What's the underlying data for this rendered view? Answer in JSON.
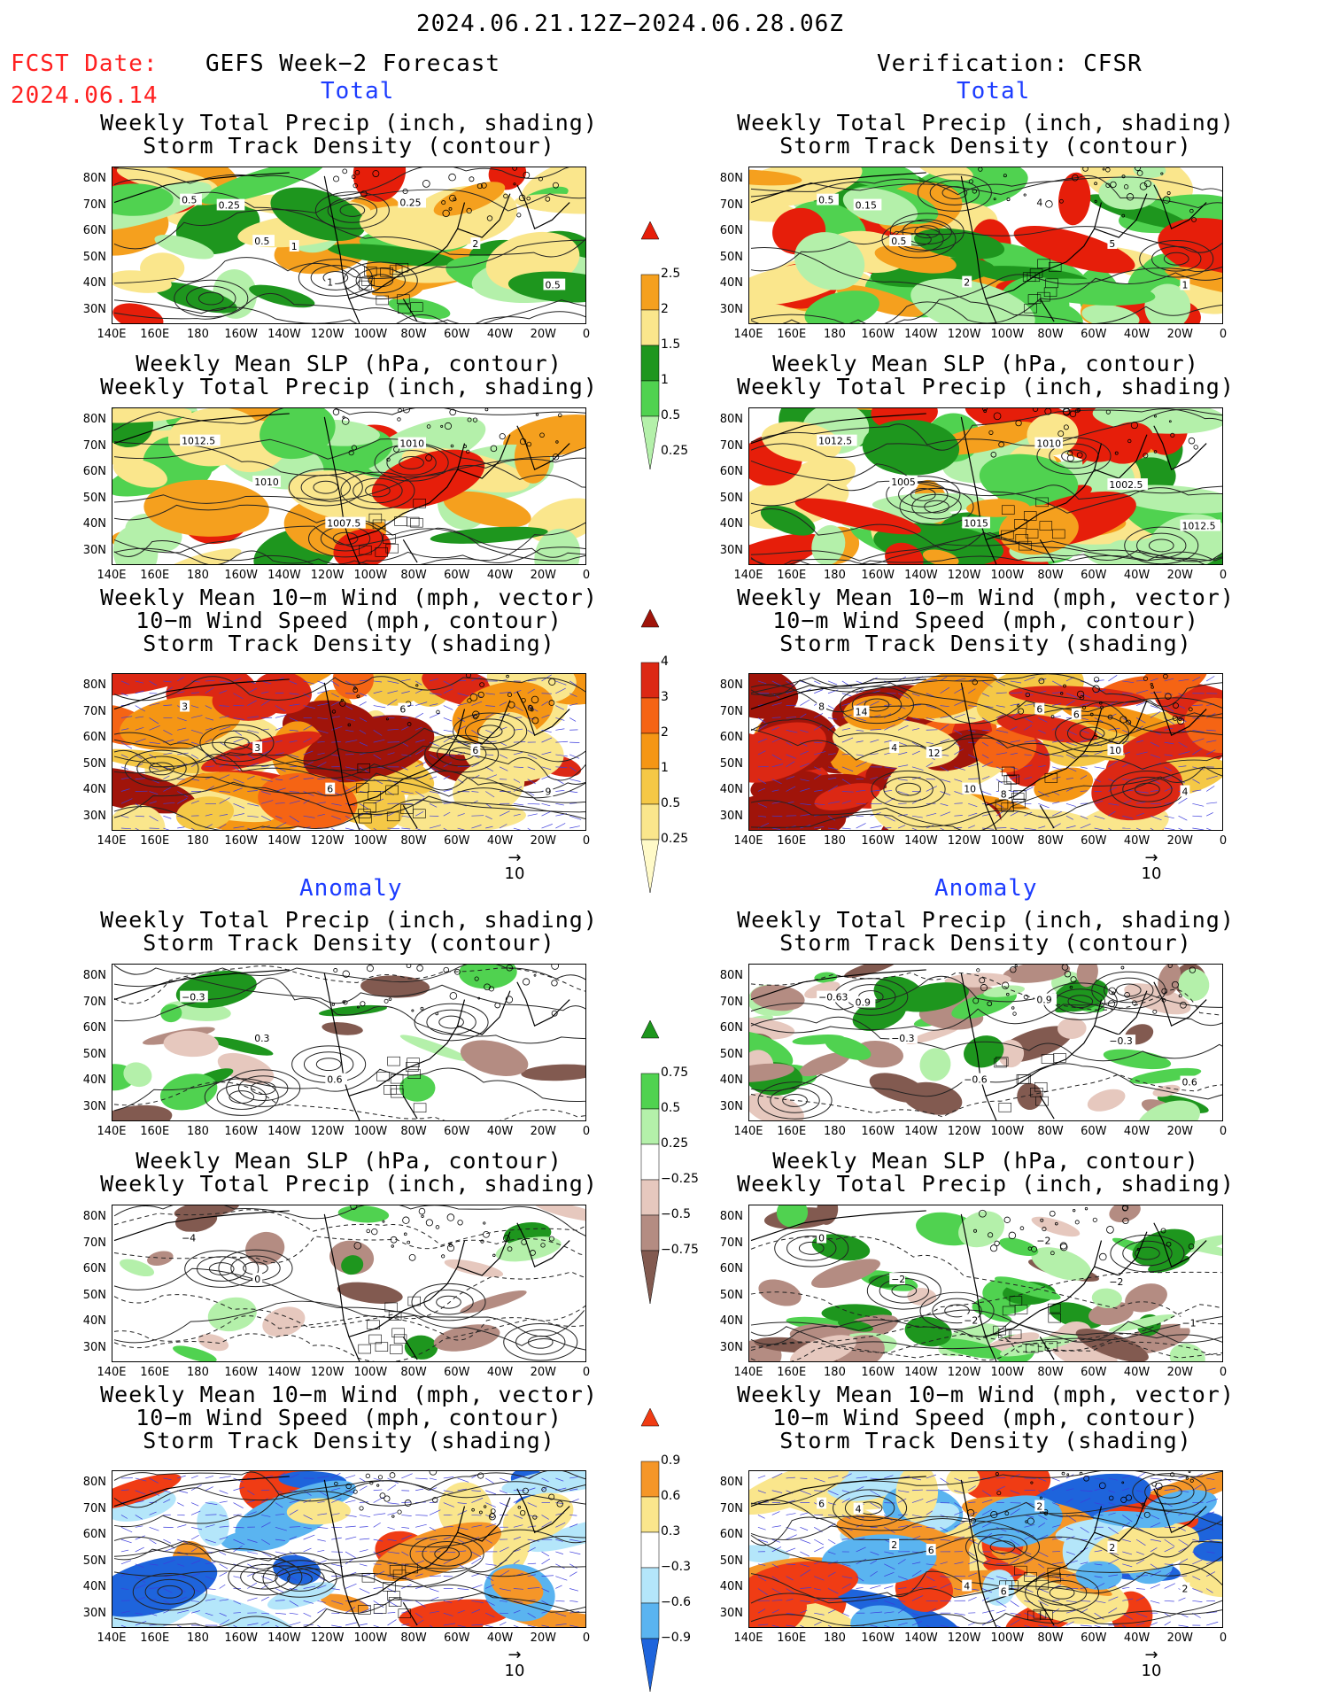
{
  "header": {
    "period": "2024.06.21.12Z−2024.06.28.06Z",
    "fcst_label": "FCST Date:",
    "fcst_date": "2024.06.14",
    "left_title": "GEFS Week−2 Forecast",
    "right_title": "Verification: CFSR"
  },
  "sections": {
    "total": "Total",
    "anomaly": "Anomaly"
  },
  "axes": {
    "lat_labels": [
      "80N",
      "70N",
      "60N",
      "50N",
      "40N",
      "30N"
    ],
    "lon_labels": [
      "140E",
      "160E",
      "180",
      "160W",
      "140W",
      "120W",
      "100W",
      "80W",
      "60W",
      "40W",
      "20W",
      "0"
    ]
  },
  "panel_titles": {
    "precip_storm": [
      "Weekly Total Precip (inch, shading)",
      "Storm Track Density (contour)"
    ],
    "slp_precip": [
      "Weekly Mean SLP (hPa, contour)",
      "Weekly Total Precip (inch, shading)"
    ],
    "wind_storm": [
      "Weekly Mean 10−m Wind (mph, vector)",
      "10−m Wind Speed (mph, contour)",
      "Storm Track Density (shading)"
    ]
  },
  "colorbars": {
    "precip_total": {
      "labels": [
        "2.5",
        "2",
        "1.5",
        "1",
        "0.5",
        "0.25"
      ],
      "colors": [
        "#e61e0a",
        "#f5a01e",
        "#fae68c",
        "#1e961e",
        "#50d250",
        "#b4f0aa"
      ]
    },
    "storm_total": {
      "labels": [
        "4",
        "3",
        "2",
        "1",
        "0.5",
        "0.25"
      ],
      "colors": [
        "#a0140a",
        "#dc2814",
        "#f56414",
        "#f59614",
        "#f5c846",
        "#fae68c",
        "#fffac8"
      ]
    },
    "precip_anom": {
      "labels": [
        "0.75",
        "0.5",
        "0.25",
        "−0.25",
        "−0.5",
        "−0.75"
      ],
      "colors": [
        "#1e961e",
        "#50d250",
        "#b4f0aa",
        "#ffffff",
        "#e6c8be",
        "#b48c82",
        "#825a50"
      ]
    },
    "storm_anom": {
      "labels": [
        "0.9",
        "0.6",
        "0.3",
        "−0.3",
        "−0.6",
        "−0.9"
      ],
      "colors": [
        "#f03c14",
        "#f59628",
        "#fae68c",
        "#ffffff",
        "#b4e6fa",
        "#5ab4f0",
        "#1e64dc"
      ]
    }
  },
  "map_labels": {
    "fc_precip_total": [
      "0.5",
      "0.5",
      "1",
      "0.25",
      "2",
      "0.5",
      "0.25",
      "1"
    ],
    "vf_precip_total": [
      "0.5",
      "0.5",
      "2",
      "4",
      "5",
      "1",
      "0.15"
    ],
    "fc_slp_total": [
      "1012.5",
      "1010",
      "1007.5",
      "1010"
    ],
    "vf_slp_total": [
      "1012.5",
      "1005",
      "1015",
      "1010",
      "1002.5",
      "1012.5"
    ],
    "fc_wind_total": [
      "3",
      "3",
      "6",
      "6",
      "6",
      "9"
    ],
    "vf_wind_total": [
      "8",
      "4",
      "10",
      "6",
      "10",
      "4",
      "14",
      "12",
      "8",
      "6"
    ],
    "fc_precip_anom": [
      "−0.3",
      "0.3",
      "0.6"
    ],
    "vf_precip_anom": [
      "−0.63",
      "−0.3",
      "−0.6",
      "0.9",
      "−0.3",
      "0.6",
      "0.9"
    ],
    "fc_slp_anom": [
      "−4",
      "0"
    ],
    "vf_slp_anom": [
      "0",
      "−2",
      "−2",
      "−2",
      "−2",
      "−1"
    ],
    "fc_wind_anom": [],
    "vf_wind_anom": [
      "6",
      "2",
      "4",
      "2",
      "2",
      "2",
      "4",
      "6",
      "6"
    ]
  },
  "vector_key": "10"
}
